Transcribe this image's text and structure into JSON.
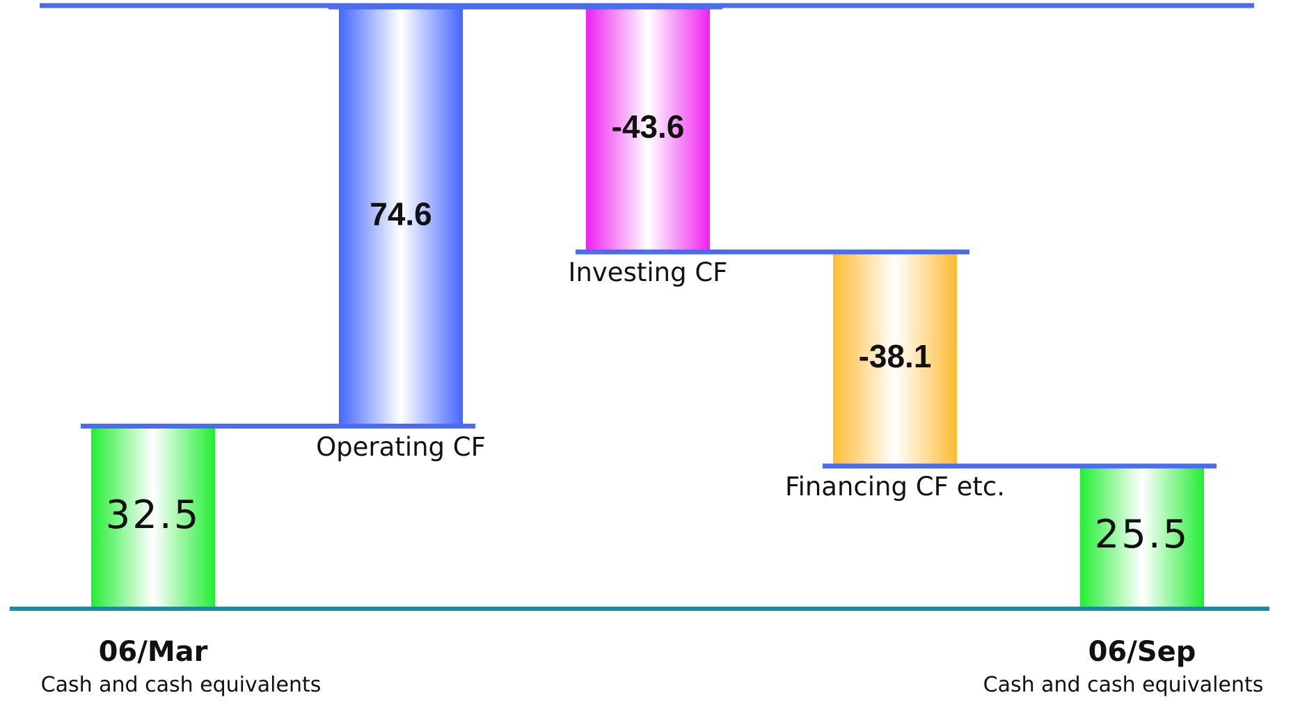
{
  "chart_data": {
    "type": "waterfall",
    "categories": [
      "06/Mar",
      "Operating CF",
      "Investing CF",
      "Financing CF etc.",
      "06/Sep"
    ],
    "values": [
      32.5,
      74.6,
      -43.6,
      -38.1,
      25.5
    ],
    "totals": [
      true,
      false,
      false,
      false,
      true
    ],
    "total_note": "Cash and cash equivalents",
    "colors": [
      "#22ee33",
      "#4466ff",
      "#ee22ee",
      "#ffbb33",
      "#22ee33"
    ],
    "connector_color": "#4a6cf0",
    "baseline_color": "#1a8ca0"
  }
}
